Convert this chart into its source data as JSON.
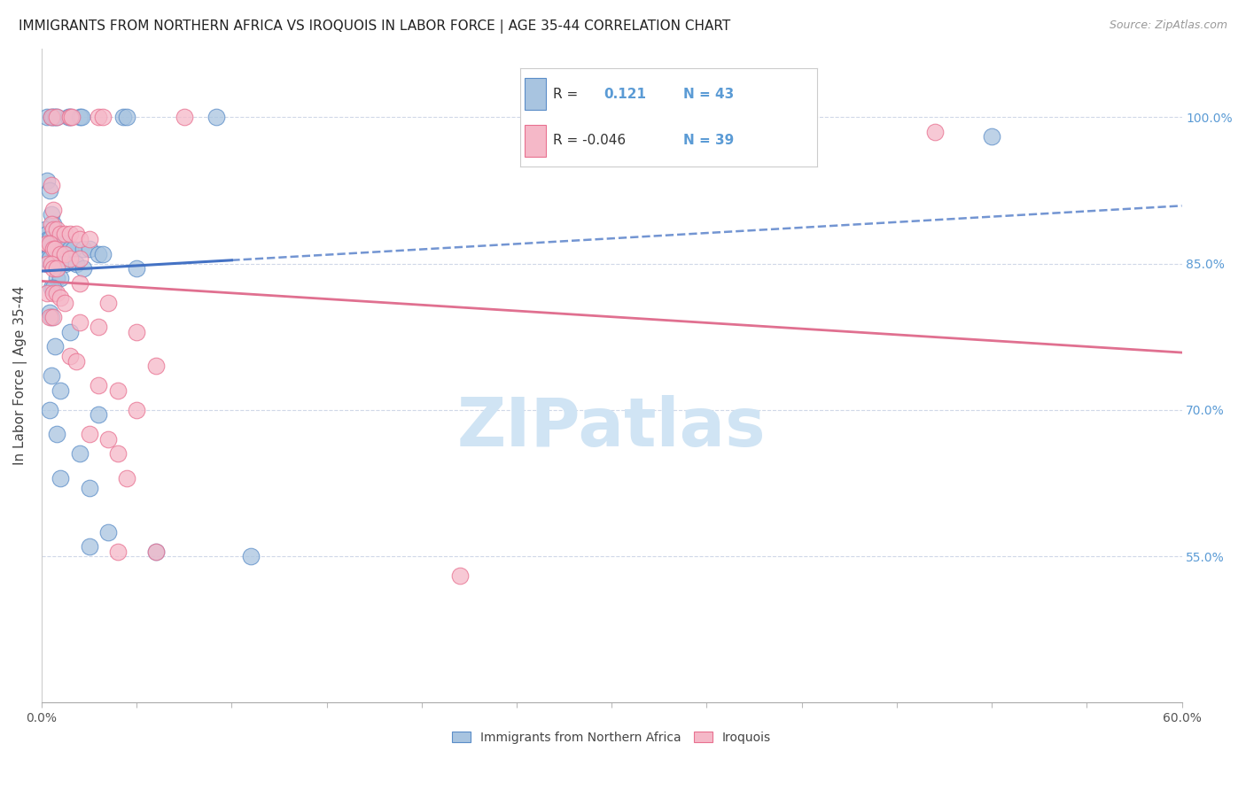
{
  "title": "IMMIGRANTS FROM NORTHERN AFRICA VS IROQUOIS IN LABOR FORCE | AGE 35-44 CORRELATION CHART",
  "source": "Source: ZipAtlas.com",
  "ylabel": "In Labor Force | Age 35-44",
  "xlim": [
    0.0,
    60.0
  ],
  "ylim": [
    40.0,
    107.0
  ],
  "ytick_positions": [
    55.0,
    70.0,
    85.0,
    100.0
  ],
  "ytick_labels": [
    "55.0%",
    "70.0%",
    "85.0%",
    "100.0%"
  ],
  "xtick_positions": [
    0.0,
    5.0,
    10.0,
    15.0,
    20.0,
    25.0,
    30.0,
    35.0,
    40.0,
    45.0,
    50.0,
    55.0,
    60.0
  ],
  "legend_r1_val": "0.121",
  "legend_n1_val": "43",
  "legend_r2_val": "-0.046",
  "legend_n2_val": "39",
  "blue_fill": "#a8c4e0",
  "blue_edge": "#5b8dc8",
  "pink_fill": "#f5b8c8",
  "pink_edge": "#e87090",
  "blue_line": "#4472c4",
  "pink_line": "#e07090",
  "right_tick_color": "#5b9bd5",
  "grid_color": "#d0d8e8",
  "background": "#ffffff",
  "blue_scatter_x": [
    0.3,
    0.5,
    0.6,
    0.7,
    0.8,
    1.4,
    1.5,
    2.0,
    2.1,
    4.3,
    4.5,
    9.2,
    0.3,
    0.4,
    0.5,
    0.6,
    0.2,
    0.3,
    0.35,
    0.4,
    0.5,
    0.6,
    0.7,
    0.8,
    1.0,
    1.1,
    1.2,
    1.3,
    1.5,
    1.7,
    2.2,
    2.5,
    3.0,
    3.2,
    0.1,
    0.2,
    0.3,
    0.4,
    1.0,
    1.2,
    1.8,
    2.2,
    5.0,
    0.8,
    1.0,
    0.5,
    0.6,
    0.4,
    0.5,
    1.5,
    0.7,
    0.5,
    1.0,
    0.4,
    3.0,
    0.8,
    2.0,
    1.0,
    2.5,
    3.5,
    2.5,
    6.0,
    11.0,
    50.0
  ],
  "blue_scatter_y": [
    100.0,
    100.0,
    100.0,
    100.0,
    100.0,
    100.0,
    100.0,
    100.0,
    100.0,
    100.0,
    100.0,
    100.0,
    93.5,
    92.5,
    90.0,
    89.0,
    88.5,
    88.0,
    87.5,
    87.5,
    87.0,
    87.0,
    87.0,
    87.0,
    87.0,
    87.0,
    87.0,
    87.0,
    86.5,
    86.5,
    86.5,
    86.5,
    86.0,
    86.0,
    85.5,
    85.5,
    85.5,
    85.5,
    85.0,
    85.0,
    85.0,
    84.5,
    84.5,
    83.5,
    83.5,
    82.5,
    82.5,
    80.0,
    79.5,
    78.0,
    76.5,
    73.5,
    72.0,
    70.0,
    69.5,
    67.5,
    65.5,
    63.0,
    62.0,
    57.5,
    56.0,
    55.5,
    55.0,
    98.0
  ],
  "pink_scatter_x": [
    0.5,
    0.8,
    1.5,
    1.6,
    3.0,
    3.2,
    7.5,
    0.5,
    0.6,
    0.5,
    0.6,
    0.8,
    1.0,
    1.2,
    1.5,
    1.8,
    2.0,
    2.5,
    0.3,
    0.4,
    0.6,
    0.7,
    1.0,
    1.2,
    1.5,
    2.0,
    0.3,
    0.5,
    0.6,
    0.8,
    2.0,
    0.3,
    0.6,
    0.8,
    1.0,
    1.2,
    3.5,
    0.4,
    0.6,
    2.0,
    3.0,
    5.0,
    1.5,
    1.8,
    6.0,
    3.0,
    4.0,
    5.0,
    2.5,
    3.5,
    4.0,
    4.5,
    6.0,
    4.0,
    22.0,
    47.0
  ],
  "pink_scatter_y": [
    100.0,
    100.0,
    100.0,
    100.0,
    100.0,
    100.0,
    100.0,
    93.0,
    90.5,
    89.0,
    88.5,
    88.5,
    88.0,
    88.0,
    88.0,
    88.0,
    87.5,
    87.5,
    87.0,
    87.0,
    86.5,
    86.5,
    86.0,
    86.0,
    85.5,
    85.5,
    85.0,
    85.0,
    84.5,
    84.5,
    83.0,
    82.0,
    82.0,
    82.0,
    81.5,
    81.0,
    81.0,
    79.5,
    79.5,
    79.0,
    78.5,
    78.0,
    75.5,
    75.0,
    74.5,
    72.5,
    72.0,
    70.0,
    67.5,
    67.0,
    65.5,
    63.0,
    55.5,
    55.5,
    53.0,
    98.5
  ],
  "watermark_text": "ZIPatlas",
  "watermark_color": "#d0e4f4",
  "watermark_fontsize": 55
}
